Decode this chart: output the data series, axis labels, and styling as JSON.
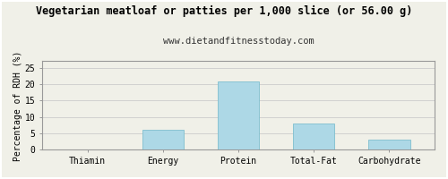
{
  "title": "Vegetarian meatloaf or patties per 1,000 slice (or 56.00 g)",
  "subtitle": "www.dietandfitnesstoday.com",
  "categories": [
    "Thiamin",
    "Energy",
    "Protein",
    "Total-Fat",
    "Carbohydrate"
  ],
  "values": [
    0.0,
    6.2,
    20.9,
    8.0,
    3.0
  ],
  "bar_color": "#add8e6",
  "bar_edge_color": "#7fbfcf",
  "ylabel": "Percentage of RDH (%)",
  "ylim": [
    0,
    27
  ],
  "yticks": [
    0,
    5,
    10,
    15,
    20,
    25
  ],
  "background_color": "#f0f0e8",
  "plot_bg_color": "#f0f0e8",
  "grid_color": "#cccccc",
  "border_color": "#999999",
  "title_fontsize": 8.5,
  "subtitle_fontsize": 7.5,
  "tick_fontsize": 7,
  "ylabel_fontsize": 7
}
